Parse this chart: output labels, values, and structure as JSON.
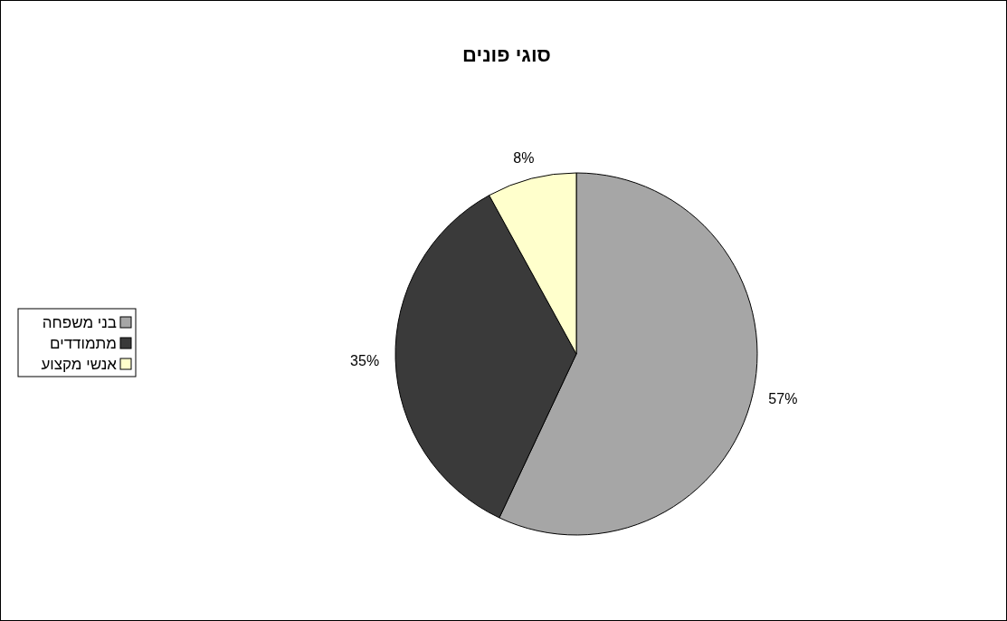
{
  "chart_data": {
    "type": "pie",
    "title": "סוגי פונים",
    "categories": [
      "בני משפחה",
      "מתמודדים",
      "אנשי מקצוע"
    ],
    "values": [
      57,
      35,
      8
    ],
    "colors": [
      "#a6a6a6",
      "#3a3a3a",
      "#ffffcc"
    ],
    "value_labels": [
      "57%",
      "35%",
      "8%"
    ],
    "legend": "left"
  }
}
